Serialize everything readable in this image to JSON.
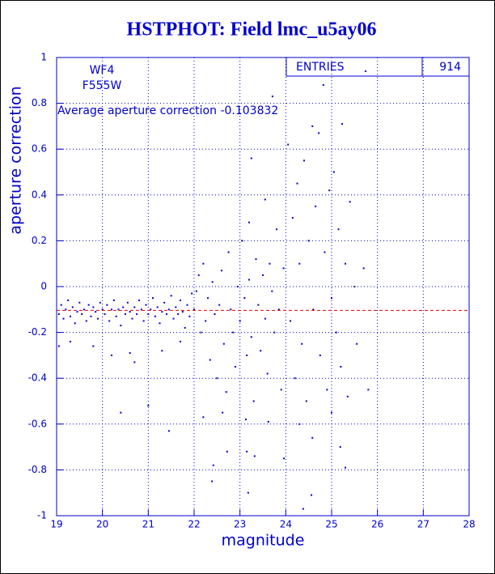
{
  "chart_data": {
    "type": "scatter",
    "title": "HSTPHOT: Field lmc_u5ay06",
    "x_label": "magnitude",
    "y_label": "aperture correction",
    "labels": [
      "WF4",
      "F555W"
    ],
    "average_text": "Average aperture correction -0.103832",
    "average": -0.103832,
    "average_color": "#e00000",
    "stats": {
      "label": "ENTRIES",
      "value": 914
    },
    "color": "#0000cc",
    "grid": true,
    "xlim": [
      19,
      28
    ],
    "xticks": [
      19,
      20,
      21,
      22,
      23,
      24,
      25,
      26,
      27,
      28
    ],
    "ylim": [
      -1,
      1
    ],
    "yticks": [
      -1,
      -0.8,
      -0.6,
      -0.4,
      -0.2,
      0,
      0.2,
      0.4,
      0.6,
      0.8,
      1
    ],
    "x": [
      19.05,
      19.1,
      19.15,
      19.2,
      19.25,
      19.3,
      19.35,
      19.4,
      19.45,
      19.5,
      19.55,
      19.6,
      19.65,
      19.7,
      19.75,
      19.8,
      19.85,
      19.9,
      19.95,
      20.0,
      20.05,
      20.1,
      20.15,
      20.2,
      20.25,
      20.3,
      20.35,
      20.4,
      20.45,
      20.5,
      20.55,
      20.6,
      20.65,
      20.7,
      20.75,
      20.8,
      20.85,
      20.9,
      20.95,
      21.0,
      21.05,
      21.1,
      21.15,
      21.2,
      21.25,
      21.3,
      21.35,
      21.4,
      21.45,
      21.5,
      21.55,
      21.6,
      21.65,
      21.7,
      21.75,
      21.8,
      21.85,
      21.9,
      21.95,
      22.0,
      19.05,
      19.3,
      19.8,
      20.2,
      20.6,
      20.7,
      21.3,
      21.7,
      20.4,
      21.0,
      21.45,
      22.2,
      22.05,
      22.1,
      22.15,
      22.2,
      22.25,
      22.3,
      22.35,
      22.4,
      22.45,
      22.5,
      22.55,
      22.6,
      22.65,
      22.7,
      22.75,
      22.8,
      22.85,
      22.9,
      22.95,
      23.0,
      23.05,
      23.1,
      23.15,
      23.2,
      23.25,
      23.3,
      23.35,
      23.4,
      23.45,
      23.5,
      23.55,
      23.6,
      23.65,
      23.7,
      23.75,
      23.8,
      23.85,
      23.9,
      23.95,
      23.2,
      23.25,
      23.55,
      23.71,
      22.72,
      23.15,
      23.18,
      23.32,
      22.42,
      22.39,
      23.96,
      23.62,
      22.62,
      23.13,
      24.05,
      24.1,
      24.15,
      24.2,
      24.25,
      24.3,
      24.35,
      24.4,
      24.45,
      24.5,
      24.58,
      24.6,
      24.65,
      24.72,
      24.75,
      24.82,
      24.85,
      24.9,
      24.95,
      25.0,
      25.05,
      25.1,
      25.15,
      25.23,
      25.2,
      25.3,
      25.35,
      25.4,
      25.5,
      25.55,
      25.7,
      25.74,
      25.8,
      24.56,
      24.38,
      24.58,
      25.19,
      25.3,
      24.3,
      25.0
    ],
    "values": [
      -0.12,
      -0.08,
      -0.14,
      -0.1,
      -0.06,
      -0.13,
      -0.09,
      -0.16,
      -0.11,
      -0.07,
      -0.12,
      -0.1,
      -0.15,
      -0.08,
      -0.13,
      -0.09,
      -0.11,
      -0.14,
      -0.07,
      -0.1,
      -0.12,
      -0.08,
      -0.15,
      -0.1,
      -0.06,
      -0.13,
      -0.1,
      -0.17,
      -0.09,
      -0.12,
      -0.07,
      -0.11,
      -0.14,
      -0.09,
      -0.12,
      -0.06,
      -0.1,
      -0.15,
      -0.08,
      -0.12,
      -0.1,
      -0.05,
      -0.13,
      -0.09,
      -0.16,
      -0.11,
      -0.07,
      -0.12,
      -0.1,
      -0.04,
      -0.14,
      -0.09,
      -0.12,
      -0.06,
      -0.11,
      -0.18,
      -0.08,
      -0.13,
      -0.03,
      -0.1,
      -0.26,
      -0.24,
      -0.26,
      -0.3,
      -0.29,
      -0.33,
      -0.28,
      -0.24,
      -0.55,
      -0.52,
      -0.63,
      -0.57,
      -0.02,
      0.05,
      -0.2,
      0.1,
      -0.15,
      -0.05,
      -0.32,
      0.02,
      -0.12,
      -0.4,
      -0.08,
      0.07,
      -0.25,
      -0.46,
      0.15,
      -0.1,
      -0.2,
      -0.35,
      0.0,
      -0.15,
      0.2,
      -0.05,
      -0.3,
      0.03,
      -0.22,
      -0.5,
      0.12,
      -0.08,
      -0.28,
      0.05,
      -0.14,
      -0.38,
      0.1,
      -0.02,
      -0.2,
      0.25,
      -0.1,
      -0.45,
      0.08,
      0.28,
      0.56,
      0.38,
      0.83,
      -0.72,
      -0.72,
      -0.9,
      -0.74,
      -0.78,
      -0.85,
      -0.75,
      -0.59,
      -0.55,
      -0.58,
      0.62,
      -0.15,
      0.3,
      -0.4,
      0.45,
      0.1,
      -0.25,
      0.55,
      -0.5,
      0.2,
      0.7,
      -0.1,
      0.35,
      0.67,
      -0.3,
      0.88,
      0.15,
      -0.45,
      0.42,
      -0.05,
      0.5,
      -0.2,
      0.25,
      0.71,
      -0.35,
      0.1,
      -0.48,
      0.37,
      0.0,
      -0.25,
      0.08,
      0.94,
      -0.45,
      -0.91,
      -0.97,
      -0.66,
      -0.7,
      -0.79,
      -0.6,
      -0.55
    ]
  }
}
